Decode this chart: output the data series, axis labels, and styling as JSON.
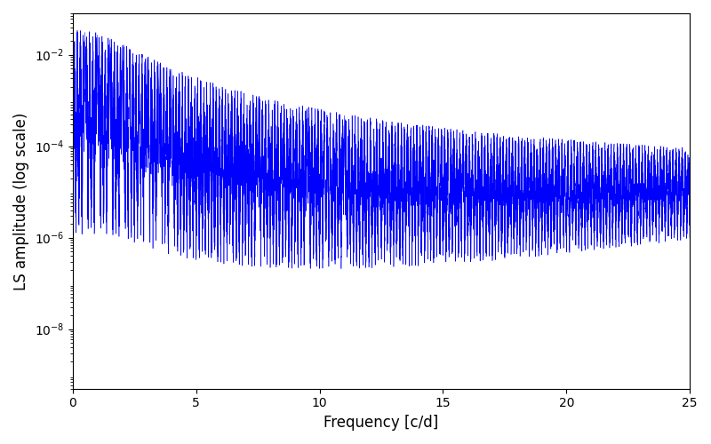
{
  "title": "",
  "xlabel": "Frequency [c/d]",
  "ylabel": "LS amplitude (log scale)",
  "xlim": [
    0,
    25
  ],
  "ylim": [
    5e-10,
    0.08
  ],
  "yscale": "log",
  "line_color": "#0000FF",
  "line_width": 0.4,
  "freq_max": 25.0,
  "n_points": 8000,
  "seed": 7,
  "background_color": "#ffffff",
  "figsize": [
    8.0,
    5.0
  ],
  "dpi": 100
}
